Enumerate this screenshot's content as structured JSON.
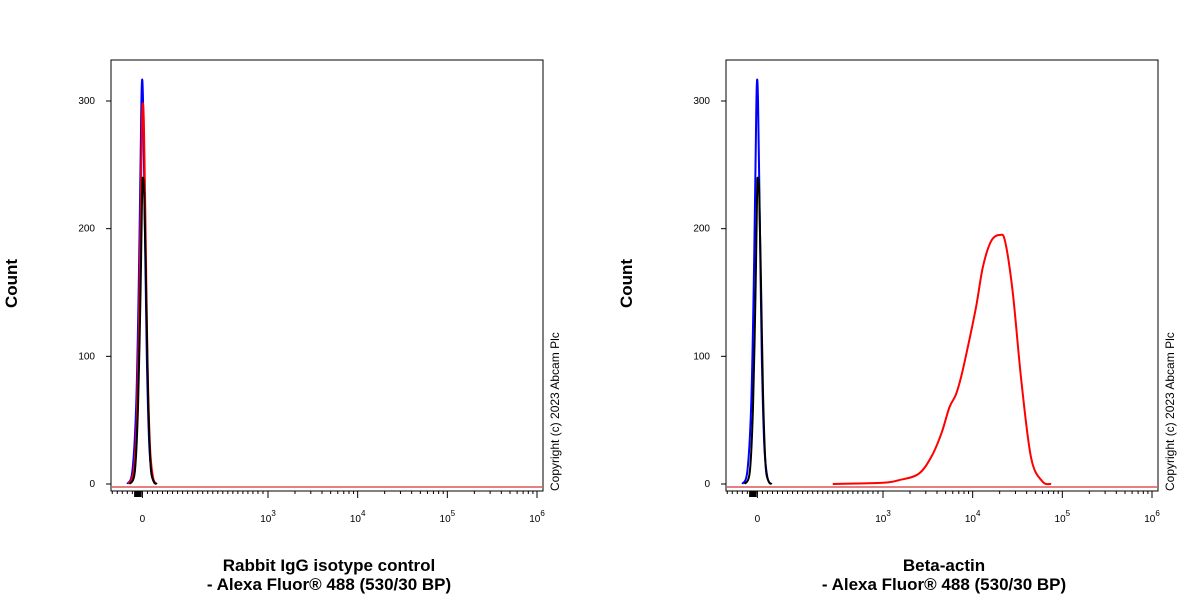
{
  "chart_data": [
    {
      "type": "line",
      "title": "",
      "ylabel": "Count",
      "xlabel_line1": "Rabbit IgG isotype control",
      "xlabel_line2": "- Alexa Fluor® 488 (530/30 BP)",
      "copyright": "Copyright (c) 2023 Abcam Plc",
      "y_ticks": [
        "0",
        "100",
        "200",
        "300"
      ],
      "y_tick_values": [
        0,
        100,
        200,
        300
      ],
      "ylim": [
        0,
        330
      ],
      "x_ticks": [
        {
          "value": 0,
          "base": "0",
          "exp": ""
        },
        {
          "value": 1000,
          "base": "10",
          "exp": "3"
        },
        {
          "value": 10000,
          "base": "10",
          "exp": "4"
        },
        {
          "value": 100000,
          "base": "10",
          "exp": "5"
        },
        {
          "value": 1000000,
          "base": "10",
          "exp": "6"
        }
      ],
      "x_scale": "biexponential",
      "xlim": [
        -250,
        1000000
      ],
      "series": [
        {
          "color": "#0000ff",
          "points": [
            [
              -120,
              0
            ],
            [
              -80,
              10
            ],
            [
              -50,
              60
            ],
            [
              -30,
              150
            ],
            [
              -15,
              250
            ],
            [
              -5,
              312
            ],
            [
              5,
              300
            ],
            [
              20,
              200
            ],
            [
              35,
              100
            ],
            [
              55,
              30
            ],
            [
              80,
              5
            ],
            [
              110,
              0
            ]
          ]
        },
        {
          "color": "#ff0000",
          "points": [
            [
              -110,
              0
            ],
            [
              -70,
              10
            ],
            [
              -45,
              50
            ],
            [
              -25,
              140
            ],
            [
              -10,
              240
            ],
            [
              0,
              295
            ],
            [
              12,
              282
            ],
            [
              25,
              200
            ],
            [
              40,
              100
            ],
            [
              60,
              30
            ],
            [
              85,
              5
            ],
            [
              115,
              0
            ]
          ]
        },
        {
          "color": "#000000",
          "points": [
            [
              -100,
              0
            ],
            [
              -60,
              10
            ],
            [
              -35,
              60
            ],
            [
              -15,
              150
            ],
            [
              -3,
              225
            ],
            [
              3,
              240
            ],
            [
              15,
              225
            ],
            [
              30,
              150
            ],
            [
              45,
              70
            ],
            [
              65,
              15
            ],
            [
              90,
              2
            ],
            [
              115,
              0
            ]
          ]
        }
      ]
    },
    {
      "type": "line",
      "title": "",
      "ylabel": "Count",
      "xlabel_line1": "Beta-actin",
      "xlabel_line2": "- Alexa Fluor® 488 (530/30 BP)",
      "copyright": "Copyright (c) 2023 Abcam Plc",
      "y_ticks": [
        "0",
        "100",
        "200",
        "300"
      ],
      "y_tick_values": [
        0,
        100,
        200,
        300
      ],
      "ylim": [
        0,
        330
      ],
      "x_ticks": [
        {
          "value": 0,
          "base": "0",
          "exp": ""
        },
        {
          "value": 1000,
          "base": "10",
          "exp": "3"
        },
        {
          "value": 10000,
          "base": "10",
          "exp": "4"
        },
        {
          "value": 100000,
          "base": "10",
          "exp": "5"
        },
        {
          "value": 1000000,
          "base": "10",
          "exp": "6"
        }
      ],
      "x_scale": "biexponential",
      "xlim": [
        -250,
        1000000
      ],
      "series": [
        {
          "color": "#0000ff",
          "points": [
            [
              -120,
              0
            ],
            [
              -80,
              10
            ],
            [
              -50,
              60
            ],
            [
              -30,
              150
            ],
            [
              -15,
              250
            ],
            [
              -5,
              312
            ],
            [
              5,
              300
            ],
            [
              20,
              200
            ],
            [
              35,
              100
            ],
            [
              55,
              30
            ],
            [
              80,
              5
            ],
            [
              110,
              0
            ]
          ]
        },
        {
          "color": "#000000",
          "points": [
            [
              -100,
              0
            ],
            [
              -60,
              10
            ],
            [
              -35,
              60
            ],
            [
              -15,
              150
            ],
            [
              -3,
              225
            ],
            [
              3,
              240
            ],
            [
              15,
              225
            ],
            [
              30,
              150
            ],
            [
              45,
              70
            ],
            [
              65,
              15
            ],
            [
              90,
              2
            ],
            [
              115,
              0
            ]
          ]
        },
        {
          "color": "#ff0000",
          "points": [
            [
              600,
              0
            ],
            [
              1000,
              1
            ],
            [
              1500,
              3
            ],
            [
              2500,
              8
            ],
            [
              3500,
              22
            ],
            [
              4500,
              40
            ],
            [
              5500,
              60
            ],
            [
              6500,
              70
            ],
            [
              7500,
              85
            ],
            [
              9000,
              110
            ],
            [
              11000,
              140
            ],
            [
              13000,
              170
            ],
            [
              16000,
              190
            ],
            [
              20000,
              195
            ],
            [
              23000,
              190
            ],
            [
              28000,
              150
            ],
            [
              35000,
              80
            ],
            [
              45000,
              20
            ],
            [
              60000,
              2
            ],
            [
              75000,
              0
            ]
          ]
        }
      ]
    }
  ]
}
